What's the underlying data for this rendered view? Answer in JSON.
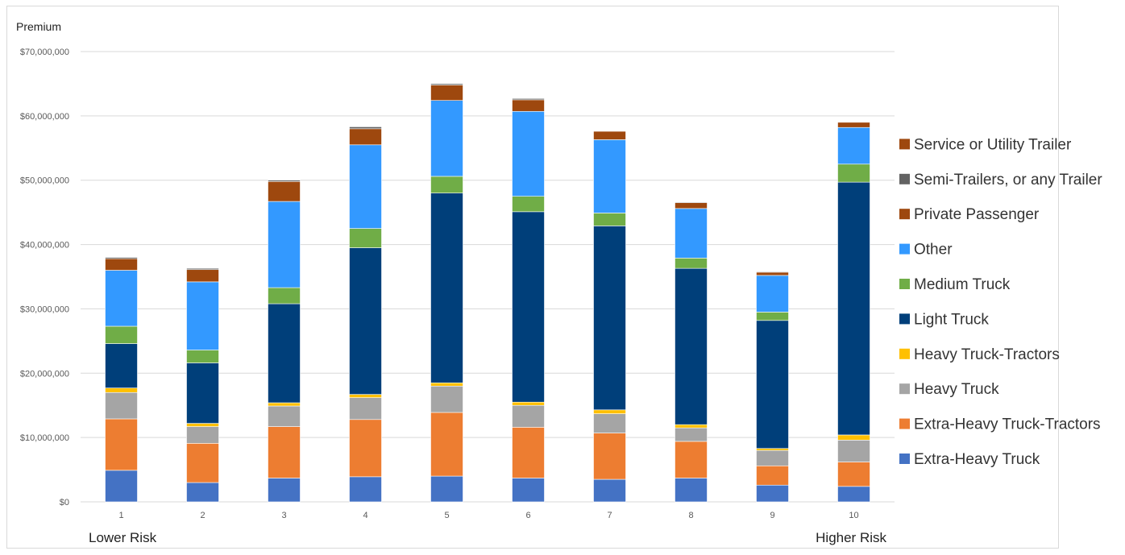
{
  "chart_data": {
    "type": "bar",
    "stacked": true,
    "ylabel": "Premium",
    "ylim": [
      0,
      70000000
    ],
    "yticks": [
      0,
      10000000,
      20000000,
      30000000,
      40000000,
      50000000,
      60000000,
      70000000
    ],
    "ytick_labels": [
      "$0",
      "$10,000,000",
      "$20,000,000",
      "$30,000,000",
      "$40,000,000",
      "$50,000,000",
      "$60,000,000",
      "$70,000,000"
    ],
    "grid": true,
    "legend_position": "right",
    "categories": [
      "1",
      "2",
      "3",
      "4",
      "5",
      "6",
      "7",
      "8",
      "9",
      "10"
    ],
    "x_left_label": "Lower Risk",
    "x_right_label": "Higher Risk",
    "series": [
      {
        "name": "Extra-Heavy Truck",
        "color": "#4472c4",
        "values": [
          4900000,
          3000000,
          3700000,
          3900000,
          4000000,
          3700000,
          3500000,
          3700000,
          2600000,
          2400000
        ]
      },
      {
        "name": "Extra-Heavy Truck-Tractors",
        "color": "#ed7d31",
        "values": [
          8000000,
          6100000,
          8000000,
          8900000,
          9900000,
          7900000,
          7200000,
          5700000,
          3000000,
          3800000
        ]
      },
      {
        "name": "Heavy Truck",
        "color": "#a5a5a5",
        "values": [
          4100000,
          2600000,
          3200000,
          3400000,
          4100000,
          3400000,
          3000000,
          2100000,
          2400000,
          3400000
        ]
      },
      {
        "name": "Heavy Truck-Tractors",
        "color": "#ffc000",
        "values": [
          700000,
          500000,
          500000,
          500000,
          500000,
          500000,
          600000,
          500000,
          300000,
          800000
        ]
      },
      {
        "name": "Light Truck",
        "color": "#003f7a",
        "values": [
          6900000,
          9400000,
          15400000,
          22800000,
          29500000,
          29600000,
          28600000,
          24300000,
          19900000,
          39300000
        ]
      },
      {
        "name": "Medium Truck",
        "color": "#70ad47",
        "values": [
          2700000,
          2000000,
          2500000,
          3000000,
          2600000,
          2400000,
          2000000,
          1600000,
          1300000,
          2800000
        ]
      },
      {
        "name": "Other",
        "color": "#3399ff",
        "values": [
          8700000,
          10600000,
          13400000,
          13000000,
          11800000,
          13200000,
          11400000,
          7700000,
          5700000,
          5700000
        ]
      },
      {
        "name": "Private Passenger",
        "color": "#9e480e",
        "values": [
          1800000,
          1900000,
          3100000,
          2500000,
          2400000,
          1800000,
          1300000,
          900000,
          500000,
          800000
        ]
      },
      {
        "name": "Semi-Trailers, or any Trailer",
        "color": "#636363",
        "values": [
          200000,
          200000,
          200000,
          300000,
          200000,
          200000,
          0,
          100000,
          100000,
          0
        ]
      },
      {
        "name": "Service or Utility Trailer",
        "color": "#9e480e",
        "values": [
          0,
          0,
          0,
          0,
          0,
          0,
          0,
          0,
          0,
          0
        ]
      }
    ]
  }
}
